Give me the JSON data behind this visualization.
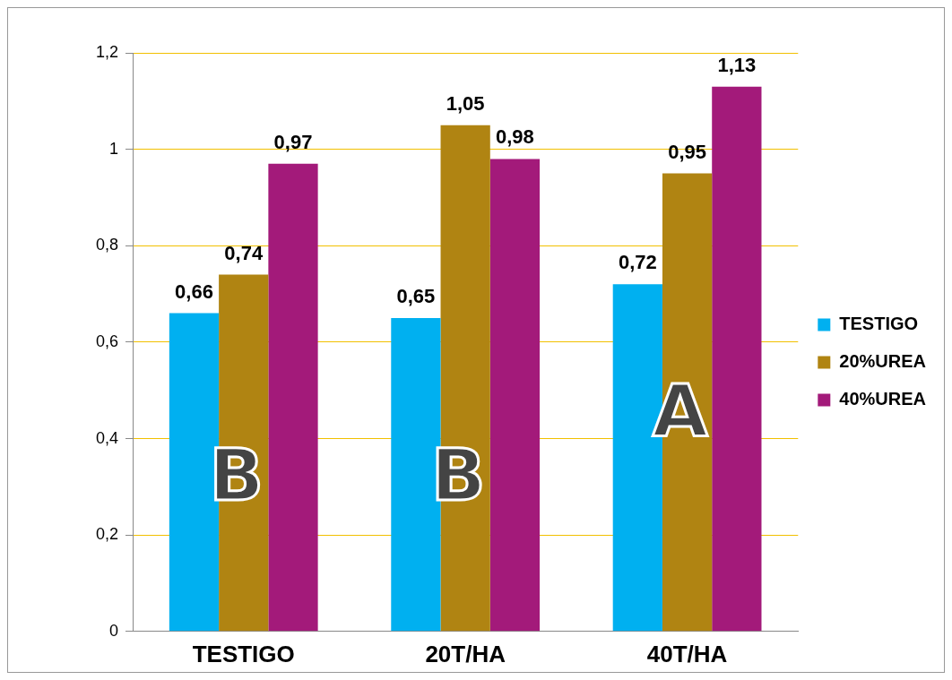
{
  "chart_data": {
    "type": "bar",
    "categories": [
      "TESTIGO",
      "20T/HA",
      "40T/HA"
    ],
    "series": [
      {
        "name": "TESTIGO",
        "color": "#00b0f0",
        "values": [
          0.66,
          0.65,
          0.72
        ],
        "value_labels": [
          "0,66",
          "0,65",
          "0,72"
        ]
      },
      {
        "name": "20%UREA",
        "color": "#b08412",
        "values": [
          0.74,
          1.05,
          0.95
        ],
        "value_labels": [
          "0,74",
          "1,05",
          "0,95"
        ]
      },
      {
        "name": "40%UREA",
        "color": "#a31a7a",
        "values": [
          0.97,
          0.98,
          1.13
        ],
        "value_labels": [
          "0,97",
          "0,98",
          "1,13"
        ]
      }
    ],
    "ylim": [
      0,
      1.2
    ],
    "yticks": [
      0,
      {
        "value": 0.2,
        "label": "0,2"
      },
      {
        "value": 0.4,
        "label": "0,4"
      },
      {
        "value": 0.6,
        "label": "0,6"
      },
      {
        "value": 0.8,
        "label": "0,8"
      },
      1,
      {
        "value": 1.2,
        "label": "1,2"
      }
    ],
    "grid": "y",
    "legend": "right",
    "annotations": [
      "B",
      "B",
      "A"
    ]
  }
}
